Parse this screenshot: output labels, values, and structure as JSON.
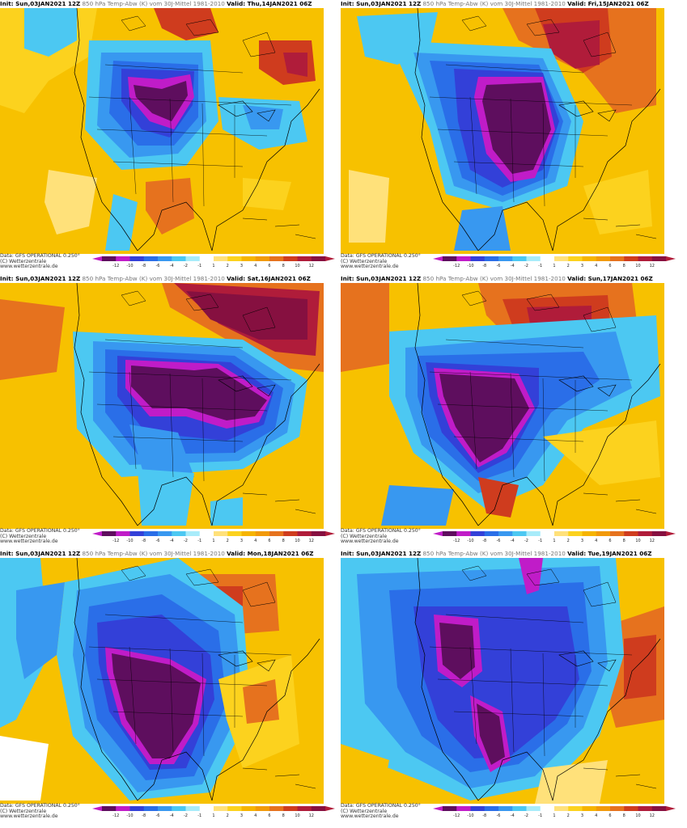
{
  "colors": {
    "bg": "#f7c100",
    "m12": "#5e0e5e",
    "m10": "#c01cc8",
    "m8": "#3340d8",
    "m6": "#2a6ee8",
    "m4": "#3898f0",
    "m2": "#4cc8f2",
    "m1": "#a8ecfa",
    "zero": "#ffffff",
    "p1": "#ffe17a",
    "p2": "#fcd21e",
    "p3": "#f6b400",
    "p4": "#f29a0a",
    "p6": "#e6721e",
    "p8": "#cf3c1e",
    "p10": "#b01c3a",
    "p12": "#861040"
  },
  "colorbar": {
    "ticks": [
      "-12",
      "-10",
      "-8",
      "-6",
      "-4",
      "-2",
      "-1",
      "1",
      "2",
      "3",
      "4",
      "6",
      "8",
      "10",
      "12"
    ]
  },
  "panels": [
    {
      "init": "Init: Sun,03JAN2021 12Z",
      "desc": "850 hPa Temp-Abw (K) vom 30J-Mittel 1981-2010",
      "valid": "Valid: Thu,14JAN2021 06Z",
      "footer": [
        "Data: GFS OPERATIONAL 0.250°",
        "(C) Wetterzentrale",
        "www.wetterzentrale.de"
      ]
    },
    {
      "init": "Init: Sun,03JAN2021 12Z",
      "desc": "850 hPa Temp-Abw (K) vom 30J-Mittel 1981-2010",
      "valid": "Valid: Fri,15JAN2021 06Z",
      "footer": [
        "Data: GFS OPERATIONAL 0.250°",
        "(C) Wetterzentrale",
        "www.wetterzentrale.de"
      ]
    },
    {
      "init": "Init: Sun,03JAN2021 12Z",
      "desc": "850 hPa Temp-Abw (K) vom 30J-Mittel 1981-2010",
      "valid": "Valid: Sat,16JAN2021 06Z",
      "footer": [
        "Data: GFS OPERATIONAL 0.250°",
        "(C) Wetterzentrale",
        "www.wetterzentrale.de"
      ]
    },
    {
      "init": "Init: Sun,03JAN2021 12Z",
      "desc": "850 hPa Temp-Abw (K) vom 30J-Mittel 1981-2010",
      "valid": "Valid: Sun,17JAN2021 06Z",
      "footer": [
        "Data: GFS OPERATIONAL 0.250°",
        "(C) Wetterzentrale",
        "www.wetterzentrale.de"
      ]
    },
    {
      "init": "Init: Sun,03JAN2021 12Z",
      "desc": "850 hPa Temp-Abw (K) vom 30J-Mittel 1981-2010",
      "valid": "Valid: Mon,18JAN2021 06Z",
      "footer": [
        "Data: GFS OPERATIONAL 0.250°",
        "(C) Wetterzentrale",
        "www.wetterzentrale.de"
      ]
    },
    {
      "init": "Init: Sun,03JAN2021 12Z",
      "desc": "850 hPa Temp-Abw (K) vom 30J-Mittel 1981-2010",
      "valid": "Valid: Tue,19JAN2021 06Z",
      "footer": [
        "Data: GFS OPERATIONAL 0.250°",
        "(C) Wetterzentrale",
        "www.wetterzentrale.de"
      ]
    }
  ]
}
